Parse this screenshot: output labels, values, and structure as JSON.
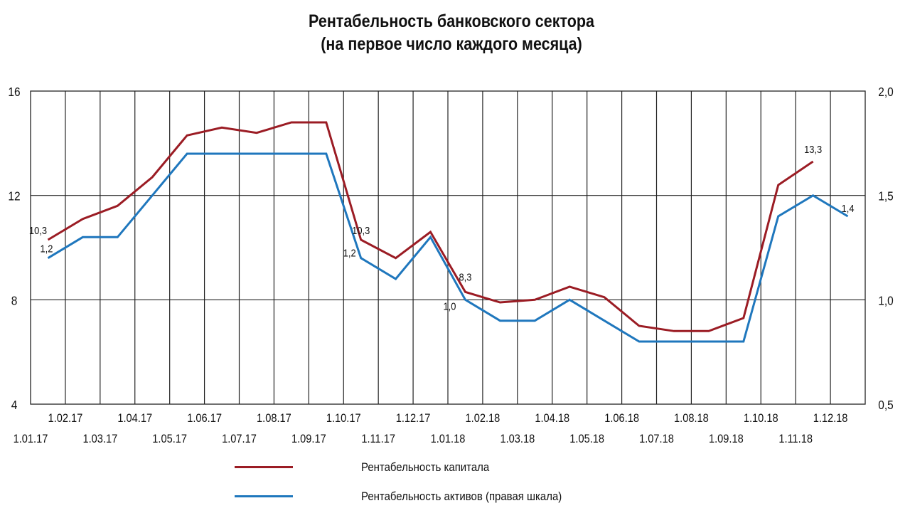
{
  "chart_data": {
    "type": "line",
    "title": [
      "Рентабельность банковского сектора",
      "(на первое число каждого месяца)"
    ],
    "categories": [
      "1.01.17",
      "1.02.17",
      "1.03.17",
      "1.04.17",
      "1.05.17",
      "1.06.17",
      "1.07.17",
      "1.08.17",
      "1.09.17",
      "1.10.17",
      "1.11.17",
      "1.12.17",
      "1.01.18",
      "1.02.18",
      "1.03.18",
      "1.04.18",
      "1.05.18",
      "1.06.18",
      "1.07.18",
      "1.08.18",
      "1.09.18",
      "1.10.18",
      "1.11.18",
      "1.12.18"
    ],
    "left_axis": {
      "ylim": [
        4,
        16
      ],
      "ticks": [
        "4",
        "8",
        "12",
        "16"
      ]
    },
    "right_axis": {
      "ylim": [
        0.5,
        2.0
      ],
      "ticks": [
        "0,5",
        "1,0",
        "1,5",
        "2,0"
      ]
    },
    "series": [
      {
        "name": "Рентабельность капитала",
        "axis": "left",
        "color": "#9b1c24",
        "values": [
          10.3,
          11.1,
          11.6,
          12.7,
          14.3,
          14.6,
          14.4,
          14.8,
          14.8,
          10.3,
          9.6,
          10.6,
          8.3,
          7.9,
          8.0,
          8.5,
          8.1,
          7.0,
          6.8,
          6.8,
          7.3,
          12.4,
          13.3,
          null
        ],
        "data_labels": [
          {
            "index": 0,
            "text": "10,3"
          },
          {
            "index": 9,
            "text": "10,3"
          },
          {
            "index": 12,
            "text": "8,3"
          },
          {
            "index": 22,
            "text": "13,3"
          }
        ]
      },
      {
        "name": "Рентабельность активов (правая шкала)",
        "axis": "right",
        "color": "#1f77bd",
        "values": [
          1.2,
          1.3,
          1.3,
          1.5,
          1.7,
          1.7,
          1.7,
          1.7,
          1.7,
          1.2,
          1.1,
          1.3,
          1.0,
          0.9,
          0.9,
          1.0,
          0.9,
          0.8,
          0.8,
          0.8,
          0.8,
          1.4,
          1.5,
          1.4
        ],
        "data_labels": [
          {
            "index": 0,
            "text": "1,2"
          },
          {
            "index": 9,
            "text": "1,2"
          },
          {
            "index": 12,
            "text": "1,0"
          },
          {
            "index": 23,
            "text": "1,4"
          }
        ]
      }
    ],
    "grid": true,
    "legend": "bottom"
  }
}
